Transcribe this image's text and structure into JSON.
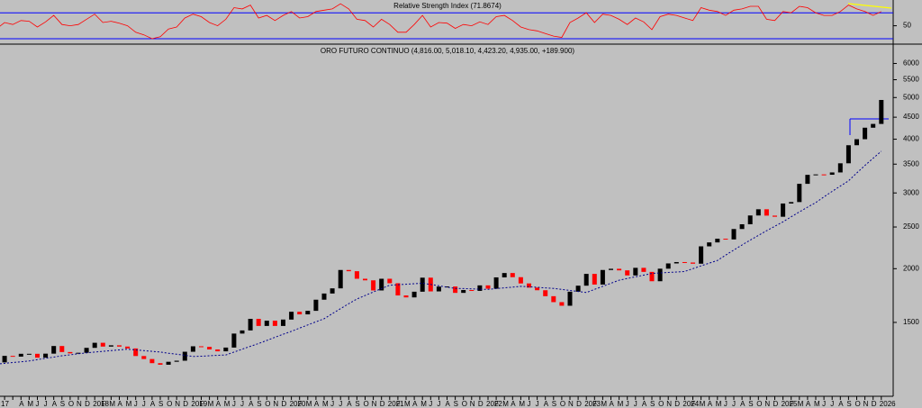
{
  "chart_data": [
    {
      "type": "line",
      "title": "Relative Strength Index (71.8674)",
      "color": "#ff0000",
      "level_color": "#0000ff",
      "levels": [
        30,
        70
      ],
      "ylim": [
        23,
        87
      ],
      "yticks": [
        50
      ],
      "values": [
        45,
        55,
        52,
        58,
        57,
        48,
        56,
        66,
        52,
        50,
        52,
        60,
        68,
        55,
        57,
        54,
        50,
        40,
        36,
        30,
        33,
        45,
        48,
        62,
        68,
        64,
        55,
        50,
        60,
        78,
        76,
        82,
        62,
        66,
        58,
        66,
        72,
        62,
        64,
        72,
        74,
        76,
        84,
        76,
        60,
        58,
        48,
        60,
        52,
        40,
        40,
        52,
        66,
        48,
        55,
        54,
        46,
        52,
        50,
        56,
        52,
        64,
        66,
        58,
        48,
        44,
        42,
        38,
        34,
        32,
        55,
        62,
        70,
        55,
        68,
        66,
        60,
        52,
        62,
        56,
        44,
        64,
        68,
        66,
        62,
        58,
        78,
        74,
        72,
        66,
        74,
        76,
        80,
        80,
        60,
        58,
        72,
        70,
        80,
        78,
        70,
        66,
        66,
        72,
        82,
        76,
        72,
        66,
        72
      ]
    },
    {
      "type": "candlestick",
      "title": "ORO FUTURO CONTINUO (4,816.00, 5,018.10, 4,423.20, 4,935.00, +189.900)",
      "log_scale": true,
      "up_color": "#000000",
      "down_color": "#ff0000",
      "ma_color": "#00008b",
      "ylim": [
        1010,
        6250
      ],
      "yticks": [
        1500,
        2000,
        2500,
        3000,
        3500,
        4000,
        4500,
        5000,
        5500,
        6000
      ],
      "categories": [
        "17",
        null,
        null,
        "A",
        "M",
        "J",
        "J",
        "A",
        "S",
        "O",
        "N",
        "D",
        "2018",
        "F",
        "M",
        "A",
        "M",
        "J",
        "J",
        "A",
        "S",
        "O",
        "N",
        "D",
        "2019",
        "F",
        "M",
        "A",
        "M",
        "J",
        "J",
        "A",
        "S",
        "O",
        "N",
        "D",
        "2020",
        "F",
        "M",
        "A",
        "M",
        "J",
        "J",
        "A",
        "S",
        "O",
        "N",
        "D",
        "2021",
        "F",
        "M",
        "A",
        "M",
        "J",
        "J",
        "A",
        "S",
        "O",
        "N",
        "D",
        "2022",
        "F",
        "M",
        "A",
        "M",
        "J",
        "J",
        "A",
        "S",
        "O",
        "N",
        "D",
        "2023",
        "F",
        "M",
        "A",
        "M",
        "J",
        "J",
        "A",
        "S",
        "O",
        "N",
        "D",
        "2024",
        "F",
        "M",
        "A",
        "M",
        "J",
        "J",
        "A",
        "S",
        "O",
        "N",
        "D",
        "2025",
        "F",
        "M",
        "A",
        "M",
        "J",
        "J",
        "A",
        "S",
        "O",
        "N",
        "D",
        "2026"
      ],
      "open": [
        1150,
        1211,
        1254,
        1249,
        1268,
        1268,
        1242,
        1269,
        1322,
        1280,
        1271,
        1275,
        1309,
        1345,
        1318,
        1327,
        1318,
        1305,
        1253,
        1233,
        1206,
        1196,
        1215,
        1222,
        1282,
        1320,
        1316,
        1298,
        1285,
        1311,
        1413,
        1437,
        1529,
        1472,
        1514,
        1472,
        1523,
        1588,
        1566,
        1596,
        1694,
        1751,
        1800,
        1986,
        1973,
        1895,
        1879,
        1780,
        1895,
        1850,
        1733,
        1715,
        1768,
        1906,
        1771,
        1817,
        1818,
        1757,
        1784,
        1776,
        1829,
        1797,
        1909,
        1954,
        1911,
        1848,
        1807,
        1782,
        1726,
        1672,
        1640,
        1768,
        1826,
        1945,
        1837,
        1986,
        1999,
        1982,
        1929,
        2009,
        1966,
        1870,
        2000,
        2057,
        2072,
        2067,
        2054,
        2254,
        2302,
        2348,
        2339,
        2473,
        2537,
        2659,
        2749,
        2657,
        2641,
        2835,
        2857,
        3150,
        3305,
        3313,
        3307,
        3348,
        3516,
        3873,
        4000,
        4254,
        4341
      ],
      "close": [
        1211,
        1254,
        1249,
        1268,
        1268,
        1242,
        1269,
        1322,
        1280,
        1271,
        1275,
        1309,
        1345,
        1318,
        1327,
        1318,
        1305,
        1253,
        1233,
        1206,
        1196,
        1215,
        1222,
        1282,
        1320,
        1316,
        1298,
        1285,
        1311,
        1413,
        1437,
        1529,
        1472,
        1514,
        1472,
        1523,
        1588,
        1566,
        1596,
        1694,
        1751,
        1800,
        1986,
        1973,
        1895,
        1879,
        1780,
        1895,
        1850,
        1733,
        1715,
        1768,
        1906,
        1771,
        1817,
        1818,
        1757,
        1784,
        1776,
        1829,
        1797,
        1909,
        1954,
        1911,
        1848,
        1807,
        1782,
        1726,
        1672,
        1640,
        1768,
        1826,
        1945,
        1837,
        1986,
        1999,
        1982,
        1929,
        2009,
        1966,
        1870,
        2000,
        2057,
        2072,
        2067,
        2054,
        2254,
        2302,
        2348,
        2339,
        2473,
        2537,
        2659,
        2749,
        2657,
        2641,
        2835,
        2857,
        3150,
        3305,
        3313,
        3307,
        3348,
        3516,
        3873,
        4000,
        4254,
        4341,
        4935
      ],
      "ma": [
        1200,
        1205,
        1210,
        1215,
        1220,
        1229,
        1238,
        1246,
        1255,
        1261,
        1268,
        1274,
        1280,
        1285,
        1290,
        1295,
        1300,
        1295,
        1290,
        1285,
        1280,
        1272,
        1265,
        1258,
        1250,
        1252,
        1255,
        1258,
        1260,
        1280,
        1300,
        1320,
        1340,
        1362,
        1385,
        1408,
        1430,
        1455,
        1480,
        1505,
        1530,
        1572,
        1615,
        1658,
        1700,
        1732,
        1765,
        1798,
        1830,
        1835,
        1840,
        1845,
        1850,
        1838,
        1825,
        1812,
        1800,
        1798,
        1795,
        1792,
        1790,
        1798,
        1805,
        1812,
        1820,
        1815,
        1810,
        1805,
        1800,
        1790,
        1780,
        1770,
        1760,
        1790,
        1820,
        1850,
        1880,
        1898,
        1915,
        1932,
        1950,
        1955,
        1960,
        1965,
        1970,
        2000,
        2030,
        2060,
        2090,
        2150,
        2210,
        2270,
        2330,
        2390,
        2450,
        2510,
        2570,
        2640,
        2710,
        2780,
        2850,
        2938,
        3025,
        3112,
        3200,
        3338,
        3475,
        3612,
        3750
      ]
    }
  ]
}
